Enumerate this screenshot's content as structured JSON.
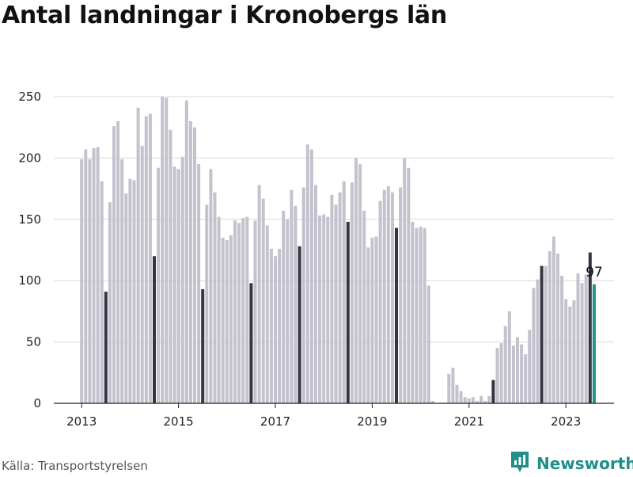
{
  "title": "Antal landningar i Kronobergs län",
  "source": "Källa: Transportstyrelsen",
  "brand": {
    "name": "Newsworthy",
    "icon": "newsworthy-logo-icon"
  },
  "colors": {
    "bar": "#c3c2cd",
    "highlight": "#363544",
    "latest": "#1f938c",
    "grid": "#d9d9d9",
    "axis": "#222222",
    "brand": "#1f8f88"
  },
  "chart_data": {
    "type": "bar",
    "title": "Antal landningar i Kronobergs län",
    "xlabel": "",
    "ylabel": "",
    "ylim": [
      0,
      250
    ],
    "yticks": [
      0,
      50,
      100,
      150,
      200,
      250
    ],
    "xticks": [
      {
        "label": "2013",
        "month": "2013-01"
      },
      {
        "label": "2015",
        "month": "2015-01"
      },
      {
        "label": "2017",
        "month": "2017-01"
      },
      {
        "label": "2019",
        "month": "2019-01"
      },
      {
        "label": "2021",
        "month": "2021-01"
      },
      {
        "label": "2023",
        "month": "2023-01"
      }
    ],
    "grid": true,
    "start_month": "2013-01",
    "highlight_month": 7,
    "values": [
      199,
      207,
      199,
      208,
      209,
      181,
      91,
      164,
      226,
      230,
      199,
      171,
      183,
      182,
      241,
      210,
      234,
      236,
      120,
      192,
      250,
      249,
      223,
      193,
      191,
      201,
      247,
      230,
      225,
      195,
      93,
      162,
      191,
      172,
      152,
      135,
      133,
      137,
      149,
      147,
      151,
      152,
      98,
      149,
      178,
      167,
      145,
      126,
      120,
      126,
      157,
      150,
      174,
      161,
      128,
      176,
      211,
      207,
      178,
      153,
      154,
      152,
      170,
      162,
      172,
      181,
      148,
      180,
      200,
      195,
      157,
      127,
      135,
      136,
      165,
      174,
      177,
      172,
      143,
      176,
      200,
      192,
      148,
      143,
      144,
      143,
      96,
      2,
      0,
      0,
      0,
      24,
      29,
      15,
      10,
      5,
      4,
      5,
      2,
      6,
      2,
      6,
      19,
      45,
      49,
      63,
      75,
      47,
      54,
      48,
      40,
      60,
      94,
      101,
      112,
      112,
      124,
      136,
      122,
      104,
      85,
      79,
      84,
      106,
      98,
      105,
      123,
      97
    ],
    "latest_label": "97"
  }
}
